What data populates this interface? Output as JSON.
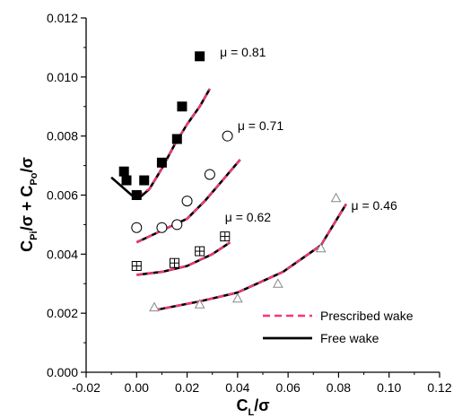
{
  "chart_data": {
    "type": "line",
    "x_axis": {
      "min": -0.02,
      "max": 0.12,
      "ticks": [
        -0.02,
        0.0,
        0.02,
        0.04,
        0.06,
        0.08,
        0.1,
        0.12
      ],
      "tick_labels": [
        "-0.02",
        "0.00",
        "0.02",
        "0.04",
        "0.06",
        "0.08",
        "0.10",
        "0.12"
      ],
      "label_main": "C",
      "label_sub": "L",
      "label_rest": "/σ"
    },
    "y_axis": {
      "min": 0.0,
      "max": 0.012,
      "ticks": [
        0.0,
        0.002,
        0.004,
        0.006,
        0.008,
        0.01,
        0.012
      ],
      "tick_labels": [
        "0.000",
        "0.002",
        "0.004",
        "0.006",
        "0.008",
        "0.010",
        "0.012"
      ],
      "label_parts": [
        "C",
        "Pi",
        "/σ + C",
        "Po",
        "/σ"
      ]
    },
    "grid": false,
    "annotations": [
      {
        "text": "μ = 0.81",
        "x": 0.033,
        "y": 0.0107
      },
      {
        "text": "μ = 0.71",
        "x": 0.04,
        "y": 0.0082
      },
      {
        "text": "μ = 0.62",
        "x": 0.035,
        "y": 0.0051
      },
      {
        "text": "μ = 0.46",
        "x": 0.085,
        "y": 0.0055
      }
    ],
    "series": [
      {
        "mu": "0.81",
        "free_wake": [
          [
            -0.01,
            0.0066
          ],
          [
            -0.006,
            0.0063
          ],
          [
            -0.002,
            0.006
          ],
          [
            0.001,
            0.0059
          ],
          [
            0.005,
            0.0062
          ],
          [
            0.01,
            0.0069
          ],
          [
            0.015,
            0.0077
          ],
          [
            0.02,
            0.0084
          ],
          [
            0.025,
            0.009
          ],
          [
            0.029,
            0.0096
          ]
        ],
        "prescribed_wake": [
          [
            0.0,
            0.006
          ],
          [
            0.005,
            0.0062
          ],
          [
            0.01,
            0.0069
          ],
          [
            0.015,
            0.0077
          ],
          [
            0.02,
            0.0084
          ],
          [
            0.025,
            0.009
          ],
          [
            0.029,
            0.0096
          ]
        ],
        "experiment_marker": "filled-square",
        "experiment": [
          [
            -0.005,
            0.0068
          ],
          [
            -0.004,
            0.0065
          ],
          [
            0.0,
            0.006
          ],
          [
            0.003,
            0.0065
          ],
          [
            0.01,
            0.0071
          ],
          [
            0.016,
            0.0079
          ],
          [
            0.018,
            0.009
          ],
          [
            0.025,
            0.0107
          ]
        ]
      },
      {
        "mu": "0.71",
        "free_wake": [
          [
            0.0,
            0.0044
          ],
          [
            0.01,
            0.0048
          ],
          [
            0.02,
            0.0052
          ],
          [
            0.027,
            0.0058
          ],
          [
            0.035,
            0.0066
          ],
          [
            0.041,
            0.0072
          ]
        ],
        "prescribed_wake": [
          [
            0.0,
            0.0044
          ],
          [
            0.01,
            0.0048
          ],
          [
            0.02,
            0.0052
          ],
          [
            0.027,
            0.0058
          ],
          [
            0.035,
            0.0066
          ],
          [
            0.041,
            0.0072
          ]
        ],
        "experiment_marker": "open-circle",
        "experiment": [
          [
            0.0,
            0.0049
          ],
          [
            0.01,
            0.0049
          ],
          [
            0.016,
            0.005
          ],
          [
            0.02,
            0.0058
          ],
          [
            0.029,
            0.0067
          ],
          [
            0.036,
            0.008
          ]
        ]
      },
      {
        "mu": "0.62",
        "free_wake": [
          [
            0.0,
            0.0033
          ],
          [
            0.01,
            0.0034
          ],
          [
            0.02,
            0.0036
          ],
          [
            0.03,
            0.004
          ],
          [
            0.037,
            0.0044
          ]
        ],
        "prescribed_wake": [
          [
            0.0,
            0.0033
          ],
          [
            0.01,
            0.0034
          ],
          [
            0.02,
            0.0036
          ],
          [
            0.03,
            0.004
          ],
          [
            0.037,
            0.0044
          ]
        ],
        "experiment_marker": "crossed-square",
        "experiment": [
          [
            0.0,
            0.0036
          ],
          [
            0.015,
            0.0037
          ],
          [
            0.025,
            0.0041
          ],
          [
            0.035,
            0.0046
          ]
        ]
      },
      {
        "mu": "0.46",
        "free_wake": [
          [
            0.007,
            0.0021
          ],
          [
            0.025,
            0.0024
          ],
          [
            0.04,
            0.0027
          ],
          [
            0.058,
            0.0034
          ],
          [
            0.073,
            0.0043
          ],
          [
            0.083,
            0.0057
          ]
        ],
        "prescribed_wake": [
          [
            0.007,
            0.0021
          ],
          [
            0.025,
            0.0024
          ],
          [
            0.04,
            0.0027
          ],
          [
            0.058,
            0.0034
          ],
          [
            0.073,
            0.0043
          ],
          [
            0.083,
            0.0057
          ]
        ],
        "experiment_marker": "open-triangle",
        "experiment": [
          [
            0.007,
            0.0022
          ],
          [
            0.025,
            0.0023
          ],
          [
            0.04,
            0.0025
          ],
          [
            0.056,
            0.003
          ],
          [
            0.073,
            0.0042
          ],
          [
            0.079,
            0.0059
          ]
        ]
      }
    ],
    "legend": {
      "placement": "bottom-right",
      "entries": [
        {
          "label": "Prescribed wake",
          "style": "dashed",
          "color": "#ff3377"
        },
        {
          "label": "Free wake",
          "style": "solid",
          "color": "#000000"
        }
      ]
    },
    "colors": {
      "free_wake": "#000000",
      "prescribed_wake": "#ff3377",
      "axis": "#000000"
    }
  }
}
